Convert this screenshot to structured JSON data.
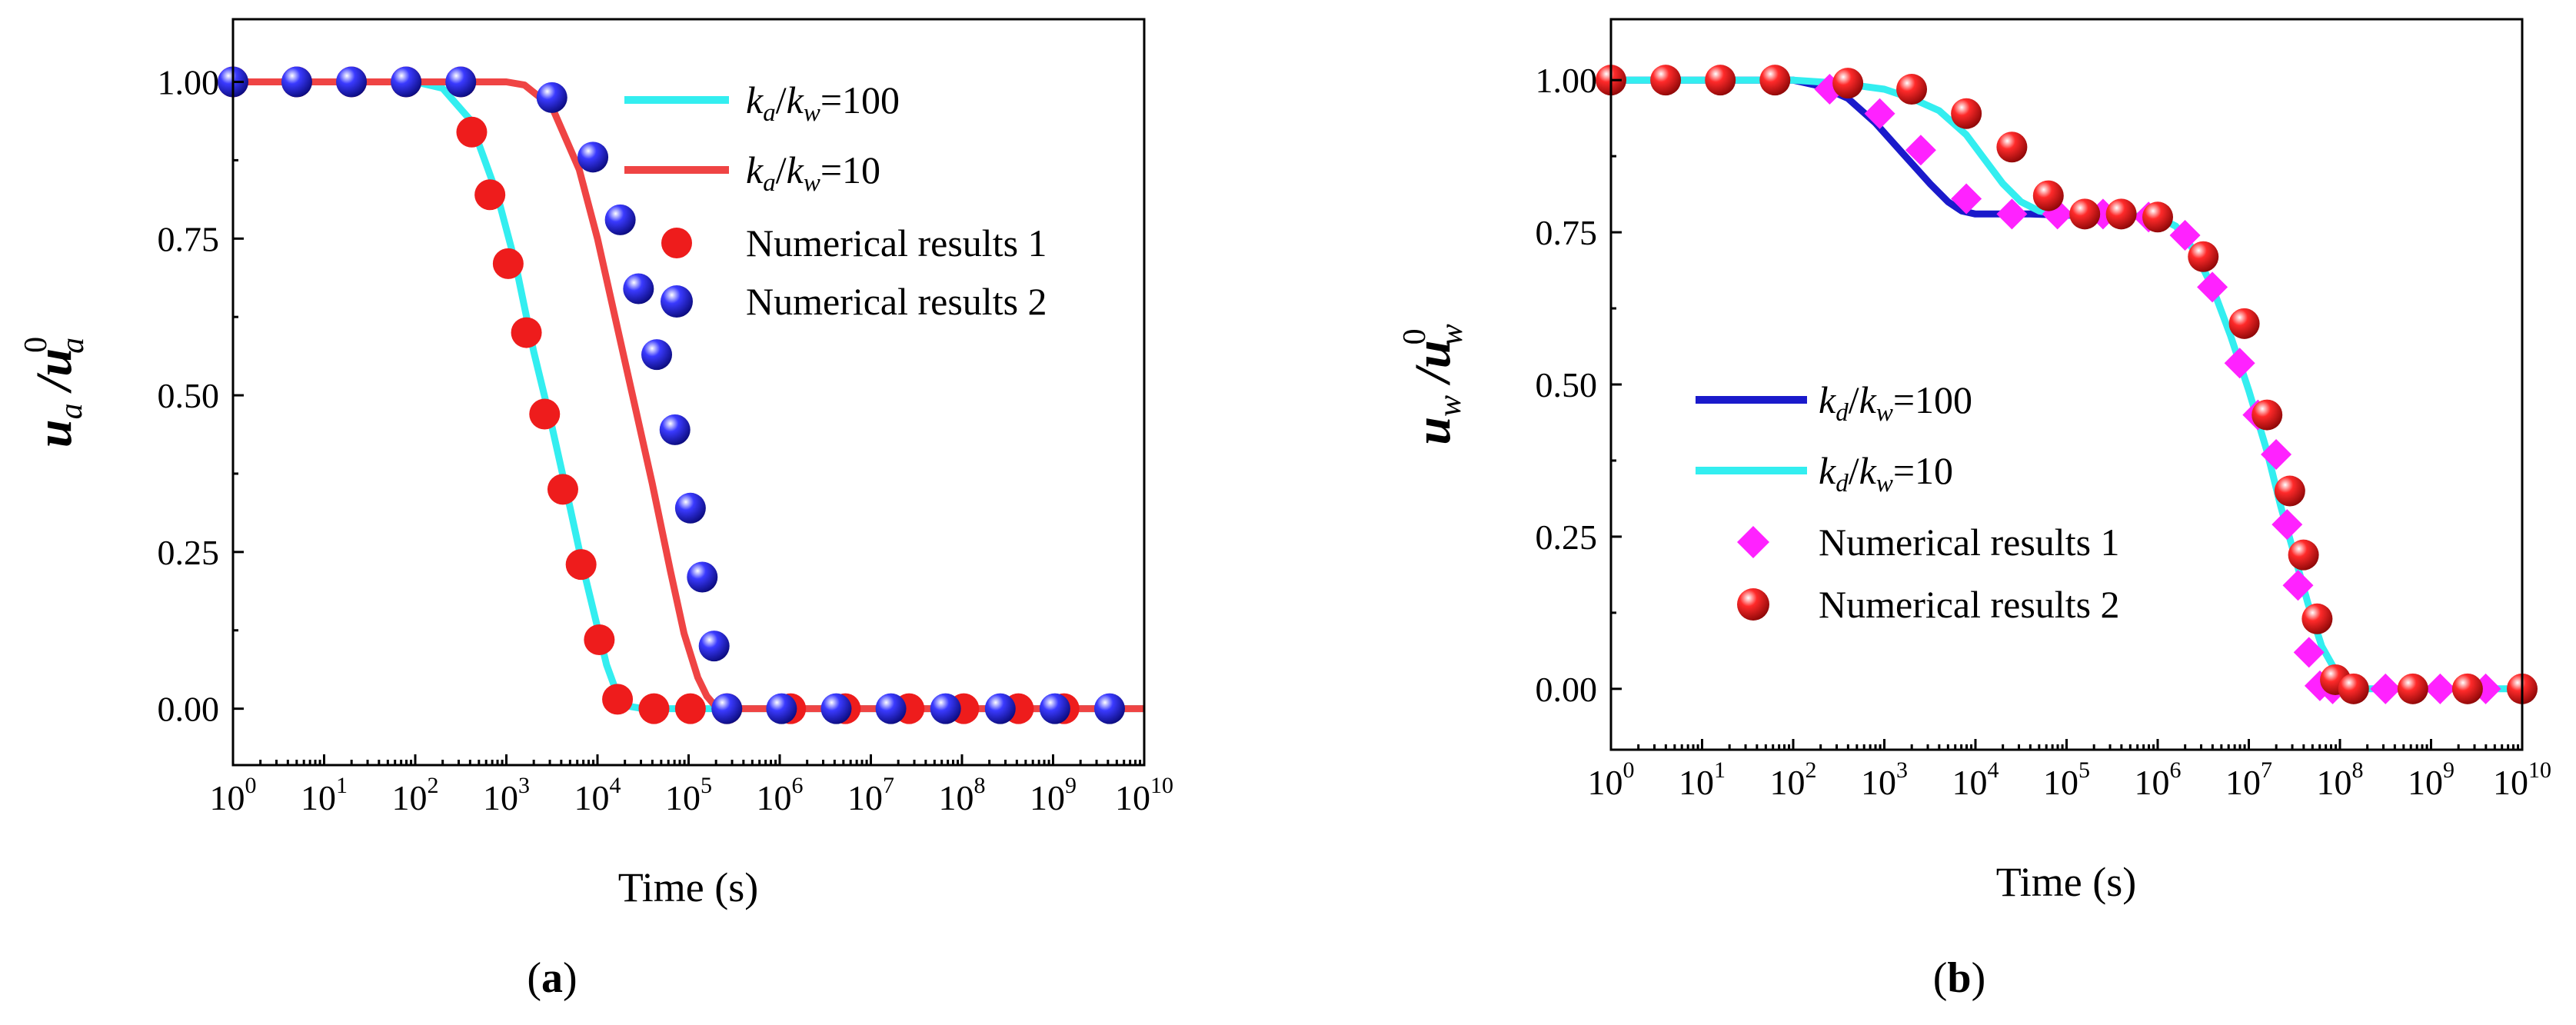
{
  "colors": {
    "cyan": "#33eef0",
    "red_line": "#ef4444",
    "blue_line": "#1a1acb",
    "red_marker": "#ee1c1c",
    "blue_marker": "#1e1ed8",
    "magenta": "#ff22ff"
  },
  "chart_data": [
    {
      "id": "a",
      "type": "line+scatter",
      "caption_open": "(",
      "caption_label": "a",
      "caption_close": ")",
      "xlabel": "Time (s)",
      "ylabel": {
        "base": "u",
        "sub1": "a",
        "slash": " /",
        "base2": "u",
        "sup": "0",
        "sub2": "a"
      },
      "x_scale": "log10",
      "xlim_exp": [
        0,
        10
      ],
      "ylim": [
        -0.09,
        1.1
      ],
      "x_tick_base": "10",
      "x_tick_exponents": [
        "0",
        "1",
        "2",
        "3",
        "4",
        "5",
        "6",
        "7",
        "8",
        "9",
        "10"
      ],
      "y_ticks": [
        "0.00",
        "0.25",
        "0.50",
        "0.75",
        "1.00"
      ],
      "legend": [
        {
          "kind": "line",
          "color": "#33eef0",
          "k1": "k",
          "s1": "a",
          "slash": "/",
          "k2": "k",
          "s2": "w",
          "value": "=100"
        },
        {
          "kind": "line",
          "color": "#ef4444",
          "k1": "k",
          "s1": "a",
          "slash": "/",
          "k2": "k",
          "s2": "w",
          "value": "=10"
        },
        {
          "kind": "red-circle",
          "text": "Numerical results 1"
        },
        {
          "kind": "blue-sphere",
          "text": "Numerical results 2"
        }
      ],
      "series": [
        {
          "name": "ka/kw=100",
          "kind": "line",
          "color": "#33eef0",
          "x_exp": [
            0,
            1,
            2,
            2.3,
            2.6,
            2.9,
            3.1,
            3.3,
            3.5,
            3.7,
            3.85,
            4.0,
            4.1,
            4.2,
            4.3,
            4.5,
            5,
            6,
            7,
            8,
            9,
            10
          ],
          "y": [
            1,
            1,
            1,
            0.99,
            0.94,
            0.82,
            0.71,
            0.57,
            0.45,
            0.32,
            0.22,
            0.13,
            0.07,
            0.03,
            0.005,
            0,
            0,
            0,
            0,
            0,
            0,
            0
          ]
        },
        {
          "name": "ka/kw=10",
          "kind": "line",
          "color": "#ef4444",
          "x_exp": [
            0,
            1,
            2,
            3,
            3.2,
            3.5,
            3.8,
            4.0,
            4.2,
            4.4,
            4.6,
            4.8,
            4.95,
            5.1,
            5.2,
            5.3,
            5.5,
            6,
            7,
            8,
            9,
            10
          ],
          "y": [
            1,
            1,
            1,
            1,
            0.995,
            0.96,
            0.86,
            0.75,
            0.62,
            0.49,
            0.36,
            0.22,
            0.12,
            0.05,
            0.02,
            0.003,
            0,
            0,
            0,
            0,
            0,
            0
          ]
        },
        {
          "name": "Numerical results 1",
          "kind": "red-circle",
          "color": "#ee1c1c",
          "x_exp": [
            0,
            0.7,
            1.3,
            1.9,
            2.5,
            2.62,
            2.82,
            3.02,
            3.22,
            3.42,
            3.62,
            3.82,
            4.02,
            4.22,
            4.62,
            5.02,
            5.42,
            6.12,
            6.72,
            7.42,
            8.02,
            8.62,
            9.12
          ],
          "y": [
            1,
            1,
            1,
            1,
            1,
            0.92,
            0.82,
            0.71,
            0.6,
            0.47,
            0.35,
            0.23,
            0.11,
            0.015,
            0,
            0,
            0,
            0,
            0,
            0,
            0,
            0,
            0
          ]
        },
        {
          "name": "Numerical results 2",
          "kind": "blue-sphere",
          "color": "#1e1ed8",
          "x_exp": [
            0,
            0.7,
            1.3,
            1.9,
            2.5,
            3.5,
            3.95,
            4.25,
            4.45,
            4.65,
            4.85,
            5.02,
            5.15,
            5.28,
            5.42,
            6.02,
            6.62,
            7.22,
            7.82,
            8.42,
            9.02,
            9.62
          ],
          "y": [
            1,
            1,
            1,
            1,
            1,
            0.975,
            0.88,
            0.78,
            0.67,
            0.565,
            0.445,
            0.32,
            0.21,
            0.1,
            0,
            0,
            0,
            0,
            0,
            0,
            0,
            0
          ]
        }
      ]
    },
    {
      "id": "b",
      "type": "line+scatter",
      "caption_open": "(",
      "caption_label": "b",
      "caption_close": ")",
      "xlabel": "Time (s)",
      "ylabel": {
        "base": "u",
        "sub1": "w",
        "slash": " /",
        "base2": "u",
        "sup": "0",
        "sub2": "w"
      },
      "x_scale": "log10",
      "xlim_exp": [
        0,
        10
      ],
      "ylim": [
        -0.1,
        1.1
      ],
      "x_tick_base": "10",
      "x_tick_exponents": [
        "0",
        "1",
        "2",
        "3",
        "4",
        "5",
        "6",
        "7",
        "8",
        "9",
        "10"
      ],
      "y_ticks": [
        "0.00",
        "0.25",
        "0.50",
        "0.75",
        "1.00"
      ],
      "legend": [
        {
          "kind": "line",
          "color": "#1a1acb",
          "k1": "k",
          "s1": "d",
          "slash": "/",
          "k2": "k",
          "s2": "w",
          "value": "=100"
        },
        {
          "kind": "line",
          "color": "#33eef0",
          "k1": "k",
          "s1": "d",
          "slash": "/",
          "k2": "k",
          "s2": "w",
          "value": "=10"
        },
        {
          "kind": "magenta-diamond",
          "text": "Numerical results 1"
        },
        {
          "kind": "red-sphere",
          "text": "Numerical results 2"
        }
      ],
      "series": [
        {
          "name": "kd/kw=100",
          "kind": "line",
          "color": "#1a1acb",
          "x_exp": [
            0,
            1,
            2,
            2.3,
            2.6,
            2.9,
            3.2,
            3.5,
            3.7,
            3.85,
            4.0,
            4.2,
            4.6,
            5.0,
            5.5,
            6.0
          ],
          "y": [
            1,
            1,
            1,
            0.99,
            0.97,
            0.93,
            0.88,
            0.83,
            0.8,
            0.785,
            0.78,
            0.78,
            0.78,
            0.778,
            0.778,
            0.775
          ]
        },
        {
          "name": "kd/kw=10",
          "kind": "line",
          "color": "#33eef0",
          "x_exp": [
            0,
            1,
            2,
            2.5,
            3.0,
            3.3,
            3.6,
            3.9,
            4.1,
            4.3,
            4.5,
            4.7,
            4.9,
            5.2,
            5.6,
            6.0,
            6.2,
            6.4,
            6.6,
            6.8,
            7.0,
            7.2,
            7.35,
            7.5,
            7.65,
            7.8,
            7.95,
            8.1,
            8.3,
            8.6,
            9,
            10
          ],
          "y": [
            1,
            1,
            1,
            0.995,
            0.985,
            0.97,
            0.95,
            0.91,
            0.87,
            0.83,
            0.8,
            0.785,
            0.78,
            0.778,
            0.778,
            0.775,
            0.76,
            0.72,
            0.66,
            0.58,
            0.49,
            0.39,
            0.3,
            0.22,
            0.14,
            0.07,
            0.03,
            0.01,
            0,
            0,
            0,
            0
          ]
        },
        {
          "name": "Numerical results 1",
          "kind": "magenta-diamond",
          "color": "#ff22ff",
          "x_exp": [
            2.4,
            2.95,
            3.4,
            3.9,
            4.4,
            4.9,
            5.4,
            5.9,
            6.3,
            6.6,
            6.9,
            7.1,
            7.3,
            7.42,
            7.54,
            7.66,
            7.78,
            7.92,
            8.5,
            9.1,
            9.6
          ],
          "y": [
            0.985,
            0.945,
            0.885,
            0.805,
            0.78,
            0.78,
            0.78,
            0.775,
            0.745,
            0.66,
            0.535,
            0.45,
            0.385,
            0.27,
            0.17,
            0.06,
            0.005,
            0,
            0,
            0,
            0
          ]
        },
        {
          "name": "Numerical results 2",
          "kind": "red-sphere",
          "color": "#ee1c1c",
          "x_exp": [
            0,
            0.6,
            1.2,
            1.8,
            2.6,
            3.3,
            3.9,
            4.4,
            4.8,
            5.2,
            5.6,
            6.0,
            6.5,
            6.95,
            7.2,
            7.45,
            7.6,
            7.75,
            7.95,
            8.15,
            8.8,
            9.4,
            10
          ],
          "y": [
            1,
            1,
            1,
            1,
            0.995,
            0.985,
            0.945,
            0.89,
            0.81,
            0.78,
            0.78,
            0.775,
            0.71,
            0.6,
            0.45,
            0.325,
            0.22,
            0.115,
            0.015,
            0,
            0,
            0,
            0
          ]
        }
      ]
    }
  ]
}
